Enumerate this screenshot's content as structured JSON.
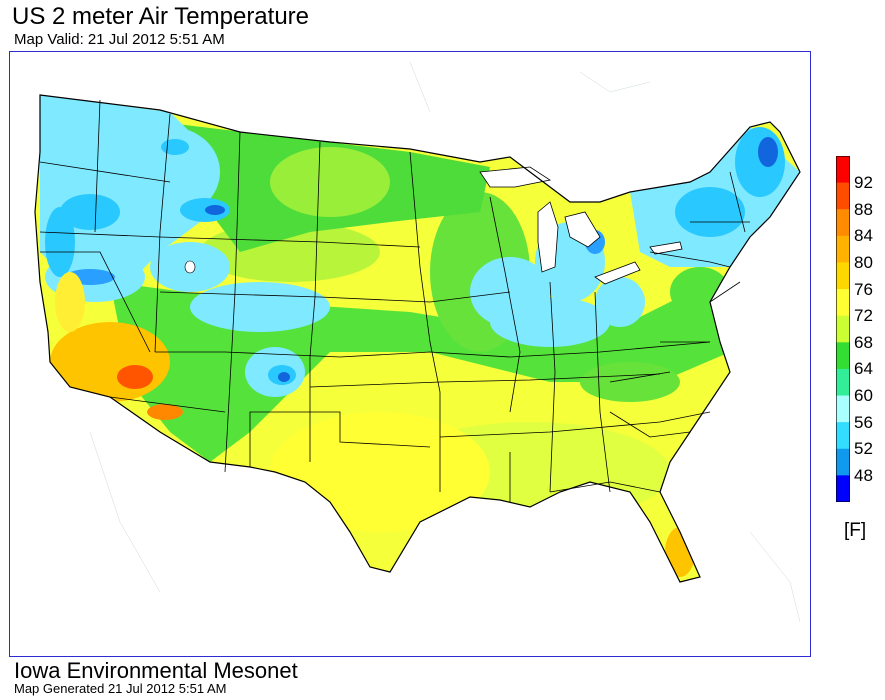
{
  "title": "US 2 meter Air Temperature",
  "subtitle": "Map Valid: 21 Jul 2012 5:51 AM",
  "footer": {
    "org": "Iowa Environmental Mesonet",
    "generated": "Map Generated 21 Jul 2012 5:51 AM"
  },
  "legend": {
    "unit": "[F]",
    "ticks": [
      "92",
      "88",
      "84",
      "80",
      "76",
      "72",
      "68",
      "64",
      "60",
      "56",
      "52",
      "48"
    ],
    "colors": [
      "#ff0000",
      "#ff4d00",
      "#ff8c00",
      "#ffb300",
      "#ffd700",
      "#ffff33",
      "#ccff33",
      "#33dd33",
      "#33ee99",
      "#aaffff",
      "#33ddff",
      "#1199ee",
      "#0000ff"
    ]
  },
  "map": {
    "region": "contiguous-us",
    "colors": {
      "cool": "#7fe9ff",
      "cold": "#29c8ff",
      "coldest": "#1166dd",
      "mild": "#33dd33",
      "warm": "#ccff33",
      "warmer": "#ffff33",
      "hot": "#ffc400",
      "hottest": "#ff5500"
    }
  }
}
